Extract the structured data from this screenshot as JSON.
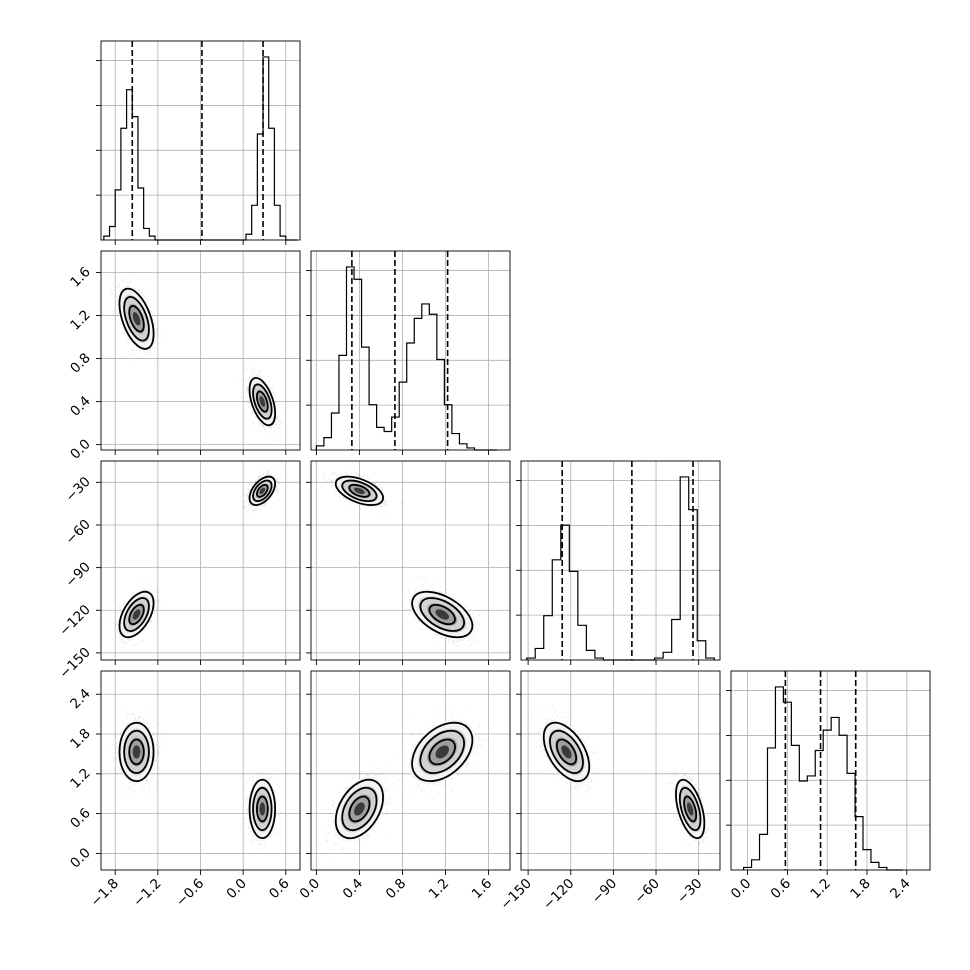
{
  "chart_data": {
    "type": "corner",
    "params": [
      {
        "range": [
          -2.0,
          0.8
        ],
        "ticks": [
          -1.8,
          -1.2,
          -0.6,
          0.0,
          0.6
        ],
        "tick_labels": [
          "−1.8",
          "−1.2",
          "−0.6",
          "0.0",
          "0.6"
        ],
        "quantiles": [
          -1.56,
          -0.58,
          0.28
        ]
      },
      {
        "range": [
          -0.05,
          1.8
        ],
        "ticks": [
          0.0,
          0.4,
          0.8,
          1.2,
          1.6
        ],
        "tick_labels": [
          "0.0",
          "0.4",
          "0.8",
          "1.2",
          "1.6"
        ],
        "quantiles": [
          0.33,
          0.73,
          1.22
        ]
      },
      {
        "range": [
          -155,
          -15
        ],
        "ticks": [
          -150,
          -120,
          -90,
          -60,
          -30
        ],
        "tick_labels": [
          "−150",
          "−120",
          "−90",
          "−60",
          "−30"
        ],
        "quantiles": [
          -126,
          -77,
          -34
        ]
      },
      {
        "range": [
          -0.25,
          2.75
        ],
        "ticks": [
          0.0,
          0.6,
          1.2,
          1.8,
          2.4
        ],
        "tick_labels": [
          "0.0",
          "0.6",
          "1.2",
          "1.8",
          "2.4"
        ],
        "quantiles": [
          0.57,
          1.1,
          1.63
        ]
      }
    ],
    "histograms": [
      {
        "bin_edges": [
          -1.96,
          -1.88,
          -1.8,
          -1.72,
          -1.64,
          -1.56,
          -1.48,
          -1.4,
          -1.32,
          -1.24,
          -1.16,
          -1.08,
          -1.0,
          -0.92,
          -0.84,
          -0.76,
          -0.68,
          -0.6,
          -0.52,
          -0.44,
          -0.36,
          -0.28,
          -0.2,
          -0.12,
          -0.04,
          0.04,
          0.12,
          0.2,
          0.28,
          0.36,
          0.44,
          0.52,
          0.6,
          0.68,
          0.76
        ],
        "counts": [
          0.02,
          0.07,
          0.26,
          0.58,
          0.78,
          0.64,
          0.27,
          0.06,
          0.02,
          0.0,
          0.0,
          0.0,
          0.0,
          0.0,
          0.0,
          0.0,
          0.0,
          0.0,
          0.0,
          0.0,
          0.0,
          0.0,
          0.0,
          0.0,
          0.0,
          0.03,
          0.18,
          0.55,
          0.95,
          0.58,
          0.18,
          0.02,
          0.0,
          0.0
        ]
      },
      {
        "bin_edges": [
          0.0,
          0.07,
          0.14,
          0.21,
          0.28,
          0.35,
          0.42,
          0.49,
          0.56,
          0.63,
          0.7,
          0.77,
          0.84,
          0.91,
          0.98,
          1.05,
          1.12,
          1.19,
          1.26,
          1.33,
          1.4,
          1.47,
          1.54,
          1.61,
          1.68
        ],
        "counts": [
          0.02,
          0.06,
          0.18,
          0.46,
          0.89,
          0.83,
          0.5,
          0.22,
          0.11,
          0.09,
          0.16,
          0.33,
          0.52,
          0.64,
          0.71,
          0.66,
          0.44,
          0.22,
          0.08,
          0.03,
          0.01,
          0.0,
          0.0,
          0.0
        ]
      },
      {
        "bin_edges": [
          -151,
          -145,
          -139,
          -133,
          -127,
          -121,
          -115,
          -109,
          -103,
          -97,
          -91,
          -85,
          -79,
          -73,
          -67,
          -61,
          -55,
          -49,
          -43,
          -37,
          -31,
          -25,
          -19
        ],
        "counts": [
          0.01,
          0.06,
          0.23,
          0.52,
          0.7,
          0.46,
          0.18,
          0.05,
          0.01,
          0.0,
          0.0,
          0.0,
          0.0,
          0.0,
          0.0,
          0.01,
          0.04,
          0.21,
          0.95,
          0.78,
          0.1,
          0.01
        ]
      },
      {
        "bin_edges": [
          -0.06,
          0.06,
          0.18,
          0.3,
          0.42,
          0.54,
          0.66,
          0.78,
          0.9,
          1.02,
          1.14,
          1.26,
          1.38,
          1.5,
          1.62,
          1.74,
          1.86,
          1.98,
          2.1,
          2.22,
          2.34
        ],
        "counts": [
          0.01,
          0.04,
          0.14,
          0.48,
          0.72,
          0.66,
          0.49,
          0.35,
          0.37,
          0.47,
          0.55,
          0.6,
          0.53,
          0.38,
          0.21,
          0.08,
          0.03,
          0.01,
          0.0,
          0.0
        ]
      }
    ],
    "clusters": [
      {
        "mean": [
          -1.5,
          1.17,
          -123,
          1.53
        ],
        "sd": [
          0.12,
          0.14,
          8,
          0.22
        ]
      },
      {
        "mean": [
          0.27,
          0.4,
          -36,
          0.67
        ],
        "sd": [
          0.09,
          0.11,
          5,
          0.22
        ]
      }
    ],
    "correlations": {
      "0-1": -0.5,
      "0-2": 0.5,
      "0-3": 0.0,
      "1-2": -0.5,
      "1-3": 0.4,
      "2-3": -0.5
    },
    "title": "",
    "xlabel": "",
    "ylabel": "",
    "grid": true
  }
}
